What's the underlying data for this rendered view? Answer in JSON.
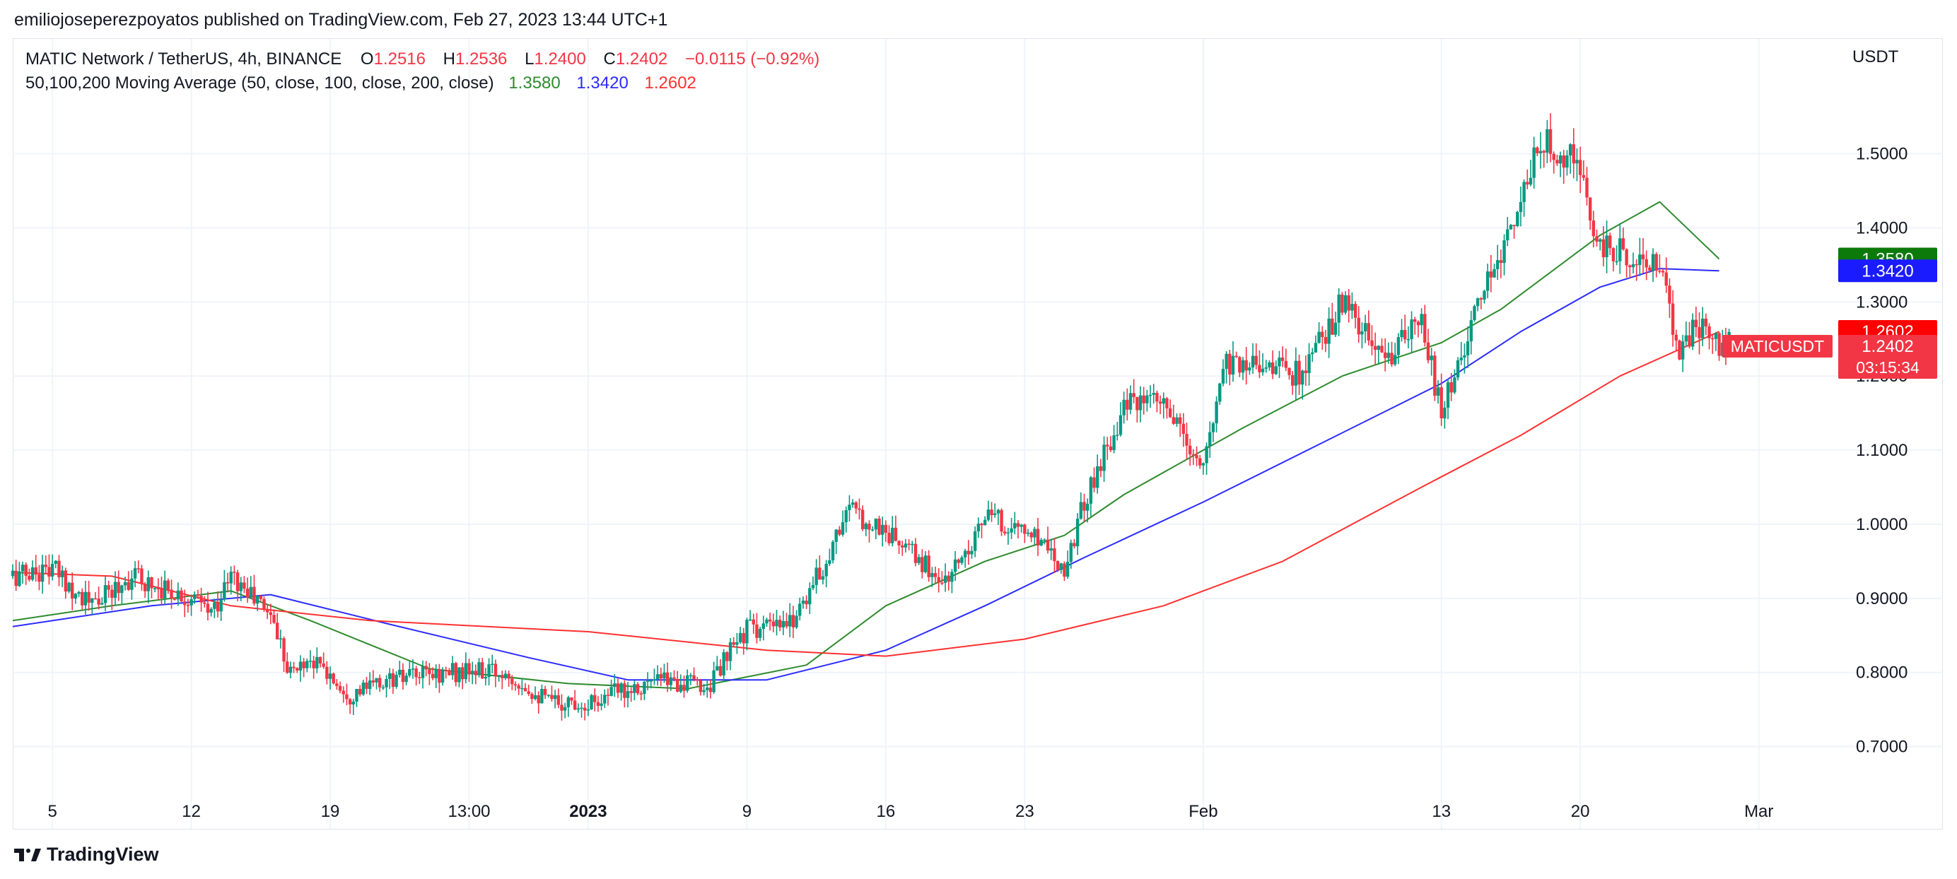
{
  "publisher_line": "emiliojoseperezpoyatos published on TradingView.com, Feb 27, 2023 13:44 UTC+1",
  "footer_brand": "TradingView",
  "legend": {
    "symbol": "MATIC Network / TetherUS, 4h, BINANCE",
    "open_label": "O",
    "open": "1.2516",
    "high_label": "H",
    "high": "1.2536",
    "low_label": "L",
    "low": "1.2400",
    "close_label": "C",
    "close": "1.2402",
    "change": "−0.0115 (−0.92%)",
    "ma_title": "50,100,200 Moving Average (50, close, 100, close, 200, close)",
    "ma50": "1.3580",
    "ma100": "1.3420",
    "ma200": "1.2602"
  },
  "colors": {
    "up": "#089981",
    "down": "#f23645",
    "ma50": "#2e8b2e",
    "ma100": "#2b2bff",
    "ma200": "#ff3030",
    "grid": "#f0f3fa",
    "text": "#131722",
    "border": "#e0e3eb"
  },
  "price_axis": {
    "unit": "USDT",
    "ticks": [
      "0.7000",
      "0.8000",
      "0.9000",
      "1.0000",
      "1.1000",
      "1.2000",
      "1.3000",
      "1.4000",
      "1.5000"
    ],
    "ylim": [
      0.63,
      1.655
    ]
  },
  "time_axis": {
    "ticks": [
      "5",
      "12",
      "19",
      "13:00",
      "2023",
      "9",
      "16",
      "23",
      "Feb",
      "13",
      "20",
      "Mar"
    ],
    "bold": [
      "2023"
    ]
  },
  "badges": {
    "ma50": "1.3580",
    "ma100": "1.3420",
    "ma200": "1.2602",
    "symbol_tag": "MATICUSDT",
    "last_price": "1.2402",
    "countdown": "03:15:34"
  },
  "chart_data": {
    "type": "candlestick",
    "title": "MATIC Network / TetherUS, 4h, BINANCE",
    "xlabel": "",
    "ylabel": "USDT",
    "ylim": [
      0.63,
      1.655
    ],
    "grid": true,
    "x_range": [
      "Dec 3, 2022",
      "Mar 5, 2023"
    ],
    "price_path": [
      {
        "date": "Dec 3",
        "price": 0.93
      },
      {
        "date": "Dec 5",
        "price": 0.94
      },
      {
        "date": "Dec 7",
        "price": 0.89
      },
      {
        "date": "Dec 9",
        "price": 0.93
      },
      {
        "date": "Dec 12",
        "price": 0.9
      },
      {
        "date": "Dec 13",
        "price": 0.88
      },
      {
        "date": "Dec 14",
        "price": 0.93
      },
      {
        "date": "Dec 16",
        "price": 0.88
      },
      {
        "date": "Dec 17",
        "price": 0.8
      },
      {
        "date": "Dec 18",
        "price": 0.82
      },
      {
        "date": "Dec 20",
        "price": 0.77
      },
      {
        "date": "Dec 22",
        "price": 0.79
      },
      {
        "date": "Dec 25",
        "price": 0.8
      },
      {
        "date": "Dec 28",
        "price": 0.8
      },
      {
        "date": "Dec 30",
        "price": 0.76
      },
      {
        "date": "Jan 1",
        "price": 0.76
      },
      {
        "date": "Jan 3",
        "price": 0.78
      },
      {
        "date": "Jan 5",
        "price": 0.79
      },
      {
        "date": "Jan 7",
        "price": 0.78
      },
      {
        "date": "Jan 9",
        "price": 0.86
      },
      {
        "date": "Jan 11",
        "price": 0.86
      },
      {
        "date": "Jan 13",
        "price": 0.95
      },
      {
        "date": "Jan 14",
        "price": 1.02
      },
      {
        "date": "Jan 16",
        "price": 0.99
      },
      {
        "date": "Jan 19",
        "price": 0.92
      },
      {
        "date": "Jan 21",
        "price": 1.01
      },
      {
        "date": "Jan 24",
        "price": 0.98
      },
      {
        "date": "Jan 25",
        "price": 0.94
      },
      {
        "date": "Jan 26",
        "price": 1.03
      },
      {
        "date": "Jan 28",
        "price": 1.16
      },
      {
        "date": "Jan 30",
        "price": 1.16
      },
      {
        "date": "Feb 1",
        "price": 1.07
      },
      {
        "date": "Feb 2",
        "price": 1.22
      },
      {
        "date": "Feb 4",
        "price": 1.22
      },
      {
        "date": "Feb 6",
        "price": 1.2
      },
      {
        "date": "Feb 8",
        "price": 1.3
      },
      {
        "date": "Feb 10",
        "price": 1.22
      },
      {
        "date": "Feb 12",
        "price": 1.27
      },
      {
        "date": "Feb 13",
        "price": 1.15
      },
      {
        "date": "Feb 14",
        "price": 1.23
      },
      {
        "date": "Feb 16",
        "price": 1.37
      },
      {
        "date": "Feb 18",
        "price": 1.51
      },
      {
        "date": "Feb 19",
        "price": 1.51
      },
      {
        "date": "Feb 20",
        "price": 1.47
      },
      {
        "date": "Feb 21",
        "price": 1.37
      },
      {
        "date": "Feb 23",
        "price": 1.36
      },
      {
        "date": "Feb 24",
        "price": 1.34
      },
      {
        "date": "Feb 25",
        "price": 1.24
      },
      {
        "date": "Feb 26",
        "price": 1.27
      },
      {
        "date": "Feb 27",
        "price": 1.24
      }
    ],
    "series": [
      {
        "name": "MA 50",
        "color": "#2e8b2e",
        "points": [
          {
            "date": "Dec 3",
            "value": 0.87
          },
          {
            "date": "Dec 8",
            "value": 0.89
          },
          {
            "date": "Dec 14",
            "value": 0.91
          },
          {
            "date": "Dec 18",
            "value": 0.87
          },
          {
            "date": "Dec 24",
            "value": 0.805
          },
          {
            "date": "Dec 31",
            "value": 0.785
          },
          {
            "date": "Jan 6",
            "value": 0.778
          },
          {
            "date": "Jan 12",
            "value": 0.81
          },
          {
            "date": "Jan 16",
            "value": 0.89
          },
          {
            "date": "Jan 21",
            "value": 0.95
          },
          {
            "date": "Jan 25",
            "value": 0.985
          },
          {
            "date": "Jan 28",
            "value": 1.04
          },
          {
            "date": "Feb 3",
            "value": 1.13
          },
          {
            "date": "Feb 8",
            "value": 1.2
          },
          {
            "date": "Feb 13",
            "value": 1.245
          },
          {
            "date": "Feb 16",
            "value": 1.29
          },
          {
            "date": "Feb 21",
            "value": 1.39
          },
          {
            "date": "Feb 24",
            "value": 1.435
          },
          {
            "date": "Feb 27",
            "value": 1.358
          }
        ]
      },
      {
        "name": "MA 100",
        "color": "#2b2bff",
        "points": [
          {
            "date": "Dec 3",
            "value": 0.862
          },
          {
            "date": "Dec 10",
            "value": 0.89
          },
          {
            "date": "Dec 16",
            "value": 0.905
          },
          {
            "date": "Dec 22",
            "value": 0.865
          },
          {
            "date": "Dec 29",
            "value": 0.82
          },
          {
            "date": "Jan 3",
            "value": 0.79
          },
          {
            "date": "Jan 10",
            "value": 0.79
          },
          {
            "date": "Jan 16",
            "value": 0.83
          },
          {
            "date": "Jan 21",
            "value": 0.89
          },
          {
            "date": "Jan 26",
            "value": 0.955
          },
          {
            "date": "Feb 1",
            "value": 1.03
          },
          {
            "date": "Feb 7",
            "value": 1.11
          },
          {
            "date": "Feb 13",
            "value": 1.19
          },
          {
            "date": "Feb 17",
            "value": 1.26
          },
          {
            "date": "Feb 21",
            "value": 1.32
          },
          {
            "date": "Feb 24",
            "value": 1.345
          },
          {
            "date": "Feb 27",
            "value": 1.342
          }
        ]
      },
      {
        "name": "MA 200",
        "color": "#ff3030",
        "points": [
          {
            "date": "Dec 3",
            "value": 0.935
          },
          {
            "date": "Dec 8",
            "value": 0.93
          },
          {
            "date": "Dec 14",
            "value": 0.89
          },
          {
            "date": "Dec 21",
            "value": 0.87
          },
          {
            "date": "Jan 1",
            "value": 0.855
          },
          {
            "date": "Jan 10",
            "value": 0.83
          },
          {
            "date": "Jan 16",
            "value": 0.822
          },
          {
            "date": "Jan 23",
            "value": 0.845
          },
          {
            "date": "Jan 30",
            "value": 0.89
          },
          {
            "date": "Feb 5",
            "value": 0.95
          },
          {
            "date": "Feb 12",
            "value": 1.05
          },
          {
            "date": "Feb 17",
            "value": 1.12
          },
          {
            "date": "Feb 22",
            "value": 1.2
          },
          {
            "date": "Feb 27",
            "value": 1.26
          }
        ]
      }
    ]
  }
}
